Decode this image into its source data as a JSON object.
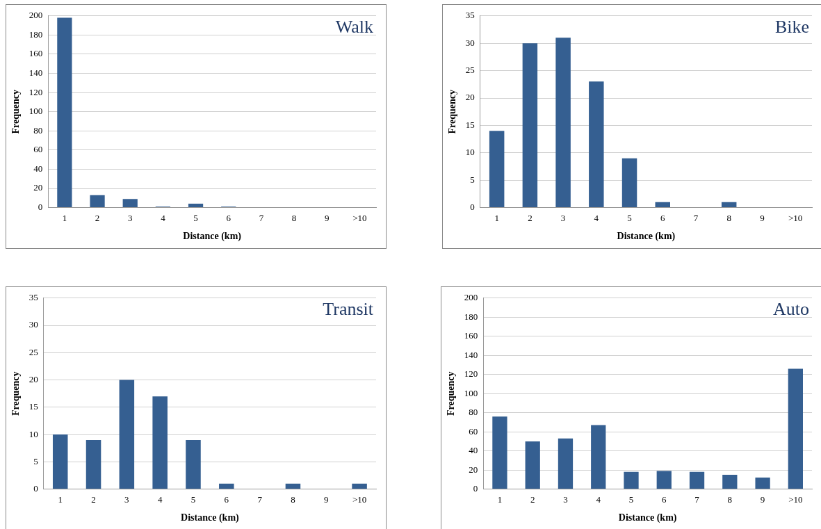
{
  "chart_data": [
    {
      "type": "bar",
      "title": "Walk",
      "xlabel": "Distance (km)",
      "ylabel": "Frequency",
      "categories": [
        "1",
        "2",
        "3",
        "4",
        "5",
        "6",
        "7",
        "8",
        "9",
        ">10"
      ],
      "values": [
        198,
        13,
        9,
        1,
        4,
        1,
        0,
        0,
        0,
        0
      ],
      "color": "#355f91",
      "ylim": [
        0,
        200
      ],
      "yticks": [
        0,
        20,
        40,
        60,
        80,
        100,
        120,
        140,
        160,
        180,
        200
      ],
      "grid": "y",
      "legend": false
    },
    {
      "type": "bar",
      "title": "Bike",
      "xlabel": "Distance (km)",
      "ylabel": "Frequency",
      "categories": [
        "1",
        "2",
        "3",
        "4",
        "5",
        "6",
        "7",
        "8",
        "9",
        ">10"
      ],
      "values": [
        14,
        30,
        31,
        23,
        9,
        1,
        0,
        1,
        0,
        0
      ],
      "color": "#355f91",
      "ylim": [
        0,
        35
      ],
      "yticks": [
        0,
        5,
        10,
        15,
        20,
        25,
        30,
        35
      ],
      "grid": "y",
      "legend": false
    },
    {
      "type": "bar",
      "title": "Transit",
      "xlabel": "Distance (km)",
      "ylabel": "Frequency",
      "categories": [
        "1",
        "2",
        "3",
        "4",
        "5",
        "6",
        "7",
        "8",
        "9",
        ">10"
      ],
      "values": [
        10,
        9,
        20,
        17,
        9,
        1,
        0,
        1,
        0,
        1
      ],
      "color": "#355f91",
      "ylim": [
        0,
        35
      ],
      "yticks": [
        0,
        5,
        10,
        15,
        20,
        25,
        30,
        35
      ],
      "grid": "y",
      "legend": false
    },
    {
      "type": "bar",
      "title": "Auto",
      "xlabel": "Distance (km)",
      "ylabel": "Frequency",
      "categories": [
        "1",
        "2",
        "3",
        "4",
        "5",
        "6",
        "7",
        "8",
        "9",
        ">10"
      ],
      "values": [
        76,
        50,
        53,
        67,
        18,
        19,
        18,
        15,
        12,
        126
      ],
      "color": "#355f91",
      "ylim": [
        0,
        200
      ],
      "yticks": [
        0,
        20,
        40,
        60,
        80,
        100,
        120,
        140,
        160,
        180,
        200
      ],
      "grid": "y",
      "legend": false
    }
  ]
}
